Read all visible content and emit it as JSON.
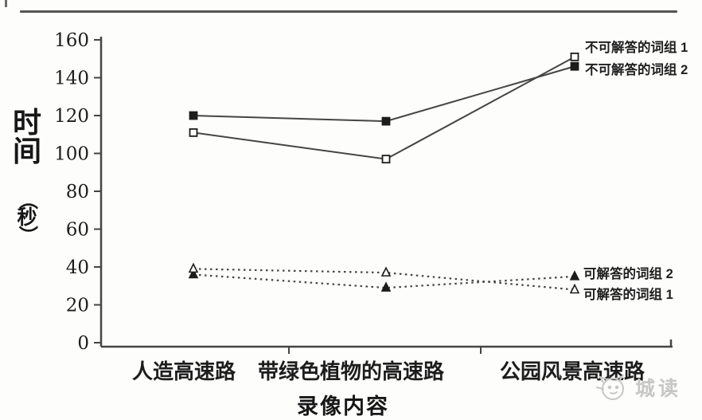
{
  "colors": {
    "line": "#454545",
    "marker_fill": "#1c1c1c",
    "text": "#1d1d1d",
    "top_border": "#565656",
    "watermark": "#c7c7c7"
  },
  "chart_data": {
    "type": "line",
    "title": "",
    "xlabel": "录像内容",
    "ylabel": "时间（秒）",
    "ylabel_main": "时间",
    "ylabel_unit": "秒",
    "ylabel_paren_open": "（",
    "ylabel_paren_close": "）",
    "ylim": [
      0,
      160
    ],
    "yticks": [
      0,
      20,
      40,
      60,
      80,
      100,
      120,
      140,
      160
    ],
    "grid": false,
    "legend_position": "right-annotations",
    "categories": [
      "人造高速路",
      "带绿色植物的高速路",
      "公园风景高速路"
    ],
    "series": [
      {
        "name": "不可解答的词组 1",
        "marker": "open-square",
        "line": "solid",
        "values": [
          111,
          97,
          151
        ]
      },
      {
        "name": "不可解答的词组 2",
        "marker": "filled-square",
        "line": "solid",
        "values": [
          120,
          117,
          146
        ]
      },
      {
        "name": "可解答的词组 2",
        "marker": "filled-triangle",
        "line": "dotted",
        "values": [
          36,
          29,
          35
        ]
      },
      {
        "name": "可解答的词组 1",
        "marker": "open-triangle",
        "line": "dotted",
        "values": [
          39,
          37,
          28
        ]
      }
    ]
  },
  "watermark": {
    "icon": "cat-face-doodle-icon",
    "text": "城读"
  }
}
